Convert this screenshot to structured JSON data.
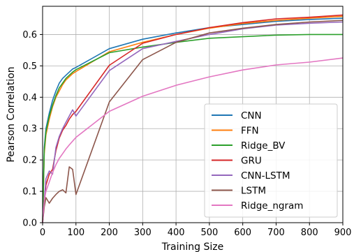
{
  "chart_data": {
    "type": "line",
    "xlabel": "Training Size",
    "ylabel": "Pearson Correlation",
    "xlim": [
      0,
      900
    ],
    "ylim": [
      0.0,
      0.69
    ],
    "xticks": [
      0,
      100,
      200,
      300,
      400,
      500,
      600,
      700,
      800,
      900
    ],
    "yticks": [
      0.0,
      0.1,
      0.2,
      0.3,
      0.4,
      0.5,
      0.6
    ],
    "ytick_labels": [
      "0.0",
      "0.1",
      "0.2",
      "0.3",
      "0.4",
      "0.5",
      "0.6"
    ],
    "grid": true,
    "legend_position": "lower-right",
    "series": [
      {
        "name": "CNN",
        "color": "#1f77b4",
        "x": [
          0,
          5,
          10,
          20,
          30,
          40,
          50,
          60,
          70,
          80,
          90,
          100,
          200,
          300,
          400,
          500,
          600,
          700,
          800,
          900
        ],
        "y": [
          0.0,
          0.24,
          0.3,
          0.35,
          0.39,
          0.42,
          0.445,
          0.46,
          0.47,
          0.48,
          0.49,
          0.495,
          0.555,
          0.585,
          0.605,
          0.622,
          0.632,
          0.642,
          0.648,
          0.652
        ]
      },
      {
        "name": "FFN",
        "color": "#ff7f0e",
        "x": [
          0,
          5,
          10,
          20,
          30,
          40,
          50,
          60,
          70,
          80,
          90,
          100,
          200,
          300,
          400,
          500,
          600,
          700,
          800,
          900
        ],
        "y": [
          0.0,
          0.22,
          0.28,
          0.33,
          0.37,
          0.4,
          0.42,
          0.44,
          0.455,
          0.465,
          0.475,
          0.482,
          0.545,
          0.575,
          0.6,
          0.62,
          0.635,
          0.645,
          0.652,
          0.658
        ]
      },
      {
        "name": "Ridge_BV",
        "color": "#2ca02c",
        "x": [
          0,
          5,
          10,
          20,
          30,
          40,
          50,
          60,
          70,
          80,
          90,
          100,
          200,
          300,
          400,
          500,
          600,
          700,
          800,
          900
        ],
        "y": [
          0.0,
          0.23,
          0.29,
          0.34,
          0.375,
          0.405,
          0.43,
          0.445,
          0.46,
          0.47,
          0.48,
          0.488,
          0.542,
          0.56,
          0.575,
          0.588,
          0.593,
          0.598,
          0.6,
          0.6
        ]
      },
      {
        "name": "GRU",
        "color": "#d62728",
        "x": [
          0,
          10,
          20,
          30,
          40,
          50,
          60,
          70,
          80,
          90,
          100,
          200,
          300,
          400,
          500,
          600,
          700,
          800,
          900
        ],
        "y": [
          0.0,
          0.12,
          0.155,
          0.17,
          0.23,
          0.27,
          0.295,
          0.31,
          0.33,
          0.345,
          0.355,
          0.502,
          0.572,
          0.6,
          0.622,
          0.638,
          0.65,
          0.655,
          0.662
        ]
      },
      {
        "name": "CNN-LSTM",
        "color": "#9467bd",
        "x": [
          0,
          10,
          20,
          30,
          40,
          50,
          60,
          70,
          80,
          90,
          100,
          200,
          300,
          400,
          500,
          600,
          700,
          800,
          900
        ],
        "y": [
          0.0,
          0.14,
          0.165,
          0.155,
          0.24,
          0.275,
          0.3,
          0.32,
          0.34,
          0.36,
          0.34,
          0.485,
          0.555,
          0.578,
          0.6,
          0.618,
          0.63,
          0.636,
          0.64
        ]
      },
      {
        "name": "LSTM",
        "color": "#8c564b",
        "x": [
          0,
          5,
          10,
          20,
          30,
          40,
          50,
          60,
          70,
          80,
          90,
          100,
          200,
          300,
          400,
          500,
          600,
          700,
          800,
          900
        ],
        "y": [
          0.0,
          0.05,
          0.08,
          0.062,
          0.078,
          0.09,
          0.1,
          0.105,
          0.095,
          0.178,
          0.17,
          0.09,
          0.385,
          0.52,
          0.575,
          0.605,
          0.62,
          0.632,
          0.64,
          0.645
        ]
      },
      {
        "name": "Ridge_ngram",
        "color": "#e377c2",
        "x": [
          0,
          5,
          10,
          20,
          30,
          40,
          50,
          60,
          70,
          80,
          90,
          100,
          200,
          300,
          400,
          500,
          600,
          700,
          800,
          900
        ],
        "y": [
          0.0,
          0.07,
          0.1,
          0.13,
          0.16,
          0.185,
          0.205,
          0.22,
          0.235,
          0.248,
          0.26,
          0.272,
          0.355,
          0.403,
          0.438,
          0.465,
          0.487,
          0.503,
          0.512,
          0.525
        ]
      }
    ]
  }
}
